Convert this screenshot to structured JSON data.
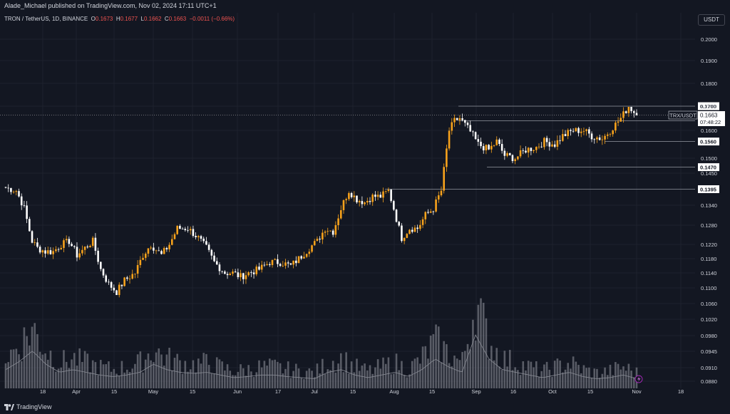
{
  "header": {
    "publisher_text": "Alade_Michael published on TradingView.com, Nov 02, 2024 17:11 UTC+1"
  },
  "legend": {
    "symbol": "TRON / TetherUS, 1D, BINANCE",
    "o_label": "O",
    "o_value": "0.1673",
    "h_label": "H",
    "h_value": "0.1677",
    "l_label": "L",
    "l_value": "0.1662",
    "c_label": "C",
    "c_value": "0.1663",
    "change": "−0.0011 (−0.66%)"
  },
  "currency": "USDT",
  "footer": {
    "brand": "TradingView"
  },
  "price_tag": {
    "symbol": "TRX/USDT",
    "price": "0.1663",
    "countdown": "07:48:22"
  },
  "colors": {
    "up": "#f7a21b",
    "down": "#ffffff",
    "volume": "#6b6e78",
    "background": "#131722",
    "grid": "#1e222d"
  },
  "chart_data": {
    "type": "candlestick",
    "symbol": "TRX/USDT",
    "x_ticks": [
      "18",
      "Apr",
      "15",
      "May",
      "15",
      "Jun",
      "17",
      "Jul",
      "15",
      "Aug",
      "15",
      "Sep",
      "16",
      "Oct",
      "15",
      "Nov",
      "18"
    ],
    "y_ticks": [
      "0.2000",
      "0.1900",
      "0.1800",
      "0.1700",
      "0.1600",
      "0.1500",
      "0.1450",
      "0.1340",
      "0.1280",
      "0.1220",
      "0.1180",
      "0.1140",
      "0.1100",
      "0.1060",
      "0.1020",
      "0.0980",
      "0.0945",
      "0.0910",
      "0.0880"
    ],
    "horizontal_levels": [
      {
        "price": "0.1700"
      },
      {
        "price": "0.1640"
      },
      {
        "price": "0.1560"
      },
      {
        "price": "0.1470"
      },
      {
        "price": "0.1395"
      }
    ],
    "last_price": 0.1663,
    "anchors": [
      [
        "Mar 08",
        0.14
      ],
      [
        "Mar 12",
        0.139
      ],
      [
        "Mar 15",
        0.133
      ],
      [
        "Mar 18",
        0.123
      ],
      [
        "Mar 20",
        0.121
      ],
      [
        "Mar 23",
        0.12
      ],
      [
        "Mar 26",
        0.12
      ],
      [
        "Mar 29",
        0.122
      ],
      [
        "Apr 01",
        0.123
      ],
      [
        "Apr 04",
        0.119
      ],
      [
        "Apr 07",
        0.121
      ],
      [
        "Apr 10",
        0.123
      ],
      [
        "Apr 13",
        0.115
      ],
      [
        "Apr 16",
        0.111
      ],
      [
        "Apr 19",
        0.109
      ],
      [
        "Apr 22",
        0.112
      ],
      [
        "Apr 26",
        0.114
      ],
      [
        "Apr 29",
        0.119
      ],
      [
        "May 02",
        0.122
      ],
      [
        "May 06",
        0.119
      ],
      [
        "May 09",
        0.122
      ],
      [
        "May 12",
        0.127
      ],
      [
        "May 16",
        0.127
      ],
      [
        "May 20",
        0.124
      ],
      [
        "May 23",
        0.121
      ],
      [
        "May 26",
        0.117
      ],
      [
        "May 30",
        0.114
      ],
      [
        "Jun 02",
        0.114
      ],
      [
        "Jun 05",
        0.113
      ],
      [
        "Jun 08",
        0.114
      ],
      [
        "Jun 12",
        0.115
      ],
      [
        "Jun 16",
        0.117
      ],
      [
        "Jun 20",
        0.117
      ],
      [
        "Jun 24",
        0.116
      ],
      [
        "Jun 27",
        0.118
      ],
      [
        "Jul 01",
        0.121
      ],
      [
        "Jul 04",
        0.123
      ],
      [
        "Jul 07",
        0.127
      ],
      [
        "Jul 10",
        0.126
      ],
      [
        "Jul 13",
        0.133
      ],
      [
        "Jul 16",
        0.139
      ],
      [
        "Jul 19",
        0.136
      ],
      [
        "Jul 22",
        0.135
      ],
      [
        "Jul 25",
        0.137
      ],
      [
        "Jul 28",
        0.137
      ],
      [
        "Jul 31",
        0.139
      ],
      [
        "Aug 02",
        0.133
      ],
      [
        "Aug 05",
        0.124
      ],
      [
        "Aug 08",
        0.127
      ],
      [
        "Aug 11",
        0.127
      ],
      [
        "Aug 14",
        0.131
      ],
      [
        "Aug 17",
        0.133
      ],
      [
        "Aug 20",
        0.139
      ],
      [
        "Aug 23",
        0.16
      ],
      [
        "Aug 25",
        0.164
      ],
      [
        "Aug 27",
        0.165
      ],
      [
        "Aug 30",
        0.161
      ],
      [
        "Sep 03",
        0.155
      ],
      [
        "Sep 07",
        0.153
      ],
      [
        "Sep 10",
        0.156
      ],
      [
        "Sep 13",
        0.151
      ],
      [
        "Sep 17",
        0.15
      ],
      [
        "Sep 21",
        0.153
      ],
      [
        "Sep 25",
        0.154
      ],
      [
        "Sep 28",
        0.156
      ],
      [
        "Oct 02",
        0.155
      ],
      [
        "Oct 05",
        0.158
      ],
      [
        "Oct 09",
        0.16
      ],
      [
        "Oct 13",
        0.16
      ],
      [
        "Oct 16",
        0.158
      ],
      [
        "Oct 20",
        0.157
      ],
      [
        "Oct 23",
        0.16
      ],
      [
        "Oct 27",
        0.165
      ],
      [
        "Oct 30",
        0.17
      ],
      [
        "Nov 02",
        0.1663
      ]
    ],
    "volume_profile": [
      0.35,
      0.5,
      0.7,
      0.45,
      0.3,
      0.35,
      0.3,
      0.25,
      0.22,
      0.25,
      0.3,
      0.45,
      0.35,
      0.3,
      0.28,
      0.3,
      0.25,
      0.2,
      0.22,
      0.25,
      0.25,
      0.22,
      0.2,
      0.18,
      0.3,
      0.35,
      0.25,
      0.2,
      0.25,
      0.3,
      0.22,
      0.35,
      0.55,
      0.4,
      0.3,
      1.0,
      0.55,
      0.35,
      0.3,
      0.25,
      0.2,
      0.25,
      0.3,
      0.22,
      0.18,
      0.2,
      0.25,
      0.18
    ]
  }
}
